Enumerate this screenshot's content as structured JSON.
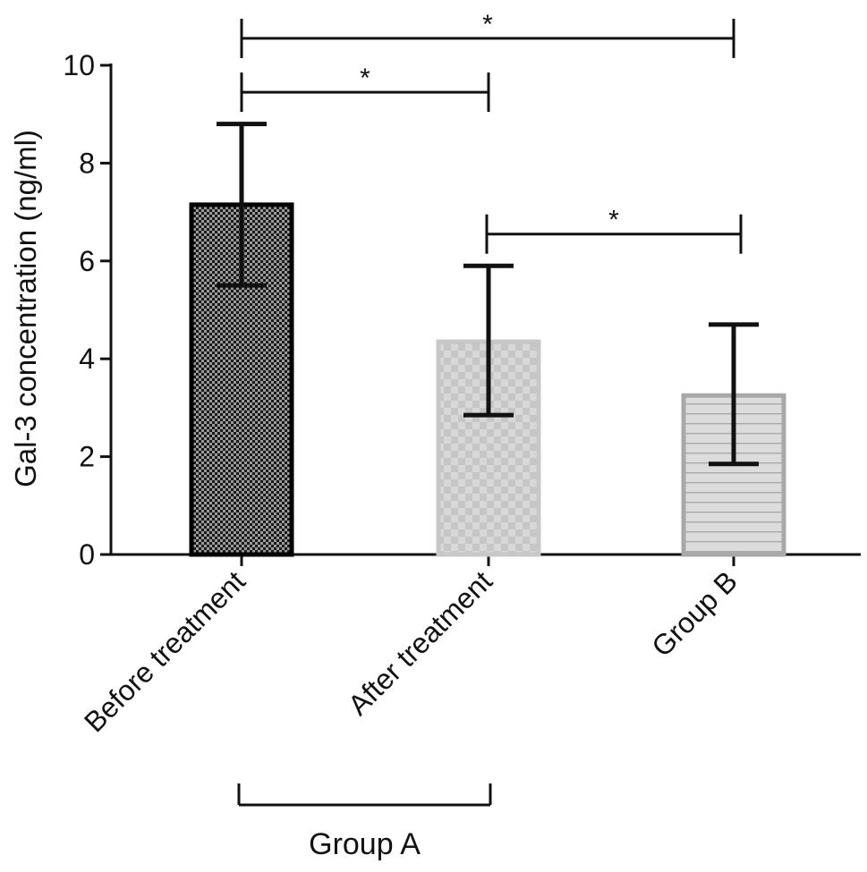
{
  "chart_data": {
    "type": "bar",
    "title": "",
    "xlabel": "",
    "ylabel": "Gal-3 concentration (ng/ml)",
    "ylim": [
      0,
      10
    ],
    "yticks": [
      0,
      2,
      4,
      6,
      8,
      10
    ],
    "categories": [
      "Before treatment",
      "After treatment",
      "Group B"
    ],
    "values": [
      7.15,
      4.35,
      3.25
    ],
    "error_lower": [
      5.5,
      2.85,
      1.85
    ],
    "error_upper": [
      8.8,
      5.9,
      4.7
    ],
    "bar_styles": [
      {
        "pattern": "dense-dots",
        "fill": "#555555",
        "stroke": "#000000"
      },
      {
        "pattern": "checker",
        "fill": "#d4d4d4",
        "stroke": "#c8c8c8"
      },
      {
        "pattern": "horizontal-lines",
        "fill": "#d9d9d9",
        "stroke": "#a8a8a8"
      }
    ],
    "group_bracket": {
      "label": "Group A",
      "from": 0,
      "to": 1
    },
    "significance": [
      {
        "from": 0,
        "to": 2,
        "level": 10.55,
        "label": "*"
      },
      {
        "from": 0,
        "to": 1,
        "level": 9.45,
        "label": "*"
      },
      {
        "from": 1,
        "to": 2,
        "level": 6.55,
        "label": "*"
      }
    ]
  }
}
